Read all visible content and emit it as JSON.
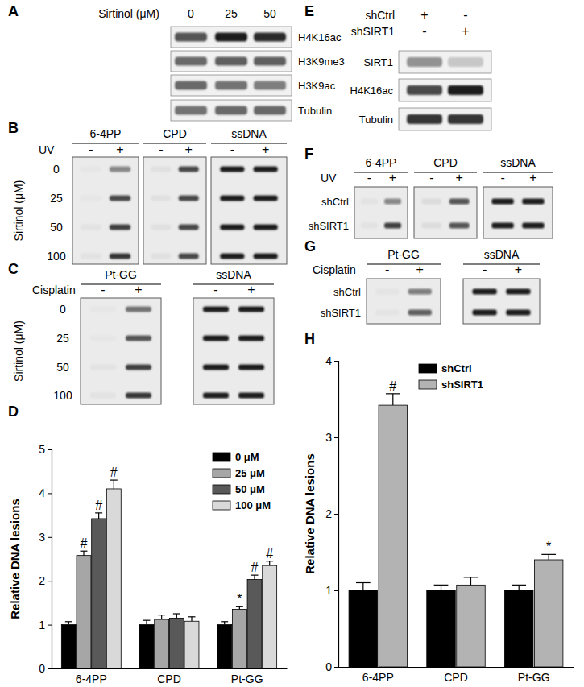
{
  "panels": [
    {
      "label": "A",
      "type": "western_blot",
      "column_title": "Sirtinol (μM)",
      "columns": [
        "0",
        "25",
        "50"
      ],
      "rows": [
        {
          "name": "H4K16ac",
          "intensity": [
            0.7,
            0.95,
            0.9
          ]
        },
        {
          "name": "H3K9me3",
          "intensity": [
            0.6,
            0.65,
            0.65
          ]
        },
        {
          "name": "H3K9ac",
          "intensity": [
            0.6,
            0.55,
            0.5
          ]
        },
        {
          "name": "Tubulin",
          "intensity": [
            0.55,
            0.6,
            0.6
          ]
        }
      ]
    },
    {
      "label": "B",
      "type": "slot_blot",
      "treatment": "UV",
      "levels": [
        "-",
        "+"
      ],
      "row_title": "Sirtinol (μM)",
      "rows": [
        "0",
        "25",
        "50",
        "100"
      ],
      "blots": [
        {
          "name": "6-4PP",
          "intensity": [
            [
              0.0,
              0.45
            ],
            [
              0.0,
              0.75
            ],
            [
              0.02,
              0.8
            ],
            [
              0.02,
              0.85
            ]
          ]
        },
        {
          "name": "CPD",
          "intensity": [
            [
              0.03,
              0.75
            ],
            [
              0.03,
              0.75
            ],
            [
              0.03,
              0.75
            ],
            [
              0.03,
              0.75
            ]
          ]
        },
        {
          "name": "ssDNA",
          "intensity": [
            [
              0.95,
              0.95
            ],
            [
              0.95,
              0.95
            ],
            [
              0.95,
              0.95
            ],
            [
              0.95,
              0.95
            ]
          ]
        }
      ]
    },
    {
      "label": "C",
      "type": "slot_blot",
      "treatment": "Cisplatin",
      "levels": [
        "-",
        "+"
      ],
      "row_title": "Sirtinol (μM)",
      "rows": [
        "0",
        "25",
        "50",
        "100"
      ],
      "blots": [
        {
          "name": "Pt-GG",
          "intensity": [
            [
              0.0,
              0.55
            ],
            [
              0.0,
              0.7
            ],
            [
              0.02,
              0.8
            ],
            [
              0.02,
              0.85
            ]
          ]
        },
        {
          "name": "ssDNA",
          "intensity": [
            [
              0.95,
              0.95
            ],
            [
              0.95,
              0.95
            ],
            [
              0.95,
              0.95
            ],
            [
              0.95,
              0.95
            ]
          ]
        }
      ]
    },
    {
      "label": "E",
      "type": "western_blot",
      "column_headers": [
        {
          "name": "shCtrl",
          "marks": [
            "+",
            "-"
          ]
        },
        {
          "name": "shSIRT1",
          "marks": [
            "-",
            "+"
          ]
        }
      ],
      "rows": [
        {
          "name": "SIRT1",
          "intensity": [
            0.4,
            0.15
          ]
        },
        {
          "name": "H4K16ac",
          "intensity": [
            0.75,
            0.95
          ]
        },
        {
          "name": "Tubulin",
          "intensity": [
            0.85,
            0.85
          ]
        }
      ]
    },
    {
      "label": "F",
      "type": "slot_blot",
      "treatment": "UV",
      "levels": [
        "-",
        "+"
      ],
      "rows": [
        "shCtrl",
        "shSIRT1"
      ],
      "blots": [
        {
          "name": "6-4PP",
          "intensity": [
            [
              0.02,
              0.45
            ],
            [
              0.02,
              0.8
            ]
          ]
        },
        {
          "name": "CPD",
          "intensity": [
            [
              0.05,
              0.7
            ],
            [
              0.05,
              0.7
            ]
          ]
        },
        {
          "name": "ssDNA",
          "intensity": [
            [
              0.95,
              0.95
            ],
            [
              0.95,
              0.95
            ]
          ]
        }
      ]
    },
    {
      "label": "G",
      "type": "slot_blot",
      "treatment": "Cisplatin",
      "levels": [
        "-",
        "+"
      ],
      "rows": [
        "shCtrl",
        "shSIRT1"
      ],
      "blots": [
        {
          "name": "Pt-GG",
          "intensity": [
            [
              0.01,
              0.5
            ],
            [
              0.01,
              0.65
            ]
          ]
        },
        {
          "name": "ssDNA",
          "intensity": [
            [
              0.95,
              0.95
            ],
            [
              0.95,
              0.95
            ]
          ]
        }
      ]
    }
  ],
  "chart_data": [
    {
      "type": "bar",
      "title": "D",
      "y_label": "Relative DNA lesions",
      "categories": [
        "6-4PP",
        "CPD",
        "Pt-GG"
      ],
      "series": [
        {
          "name": "0 μM",
          "color": "#000000",
          "values": [
            1.0,
            1.0,
            1.0
          ],
          "errors": [
            0.07,
            0.1,
            0.07
          ],
          "annotations": [
            null,
            null,
            null
          ]
        },
        {
          "name": "25 μM",
          "color": "#a6a6a6",
          "values": [
            2.58,
            1.12,
            1.35
          ],
          "errors": [
            0.1,
            0.1,
            0.06
          ],
          "annotations": [
            "#",
            null,
            "*"
          ]
        },
        {
          "name": "50 μM",
          "color": "#595959",
          "values": [
            3.42,
            1.15,
            2.03
          ],
          "errors": [
            0.13,
            0.1,
            0.1
          ],
          "annotations": [
            "#",
            null,
            "#"
          ]
        },
        {
          "name": "100 μM",
          "color": "#d9d9d9",
          "values": [
            4.1,
            1.08,
            2.35
          ],
          "errors": [
            0.2,
            0.1,
            0.1
          ],
          "annotations": [
            "#",
            null,
            "#"
          ]
        }
      ],
      "ylim": [
        0,
        5
      ],
      "yticks": [
        0,
        1,
        2,
        3,
        4,
        5
      ],
      "legend": "upper right"
    },
    {
      "type": "bar",
      "title": "H",
      "y_label": "Relative DNA lesions",
      "categories": [
        "6-4PP",
        "CPD",
        "Pt-GG"
      ],
      "series": [
        {
          "name": "shCtrl",
          "color": "#000000",
          "values": [
            1.0,
            1.0,
            1.0
          ],
          "errors": [
            0.1,
            0.07,
            0.07
          ],
          "annotations": [
            null,
            null,
            null
          ]
        },
        {
          "name": "shSIRT1",
          "color": "#b3b3b3",
          "values": [
            3.42,
            1.07,
            1.4
          ],
          "errors": [
            0.15,
            0.1,
            0.07
          ],
          "annotations": [
            "#",
            null,
            "*"
          ]
        }
      ],
      "ylim": [
        0,
        4
      ],
      "yticks": [
        0,
        1,
        2,
        3,
        4
      ],
      "legend": "upper center"
    }
  ]
}
